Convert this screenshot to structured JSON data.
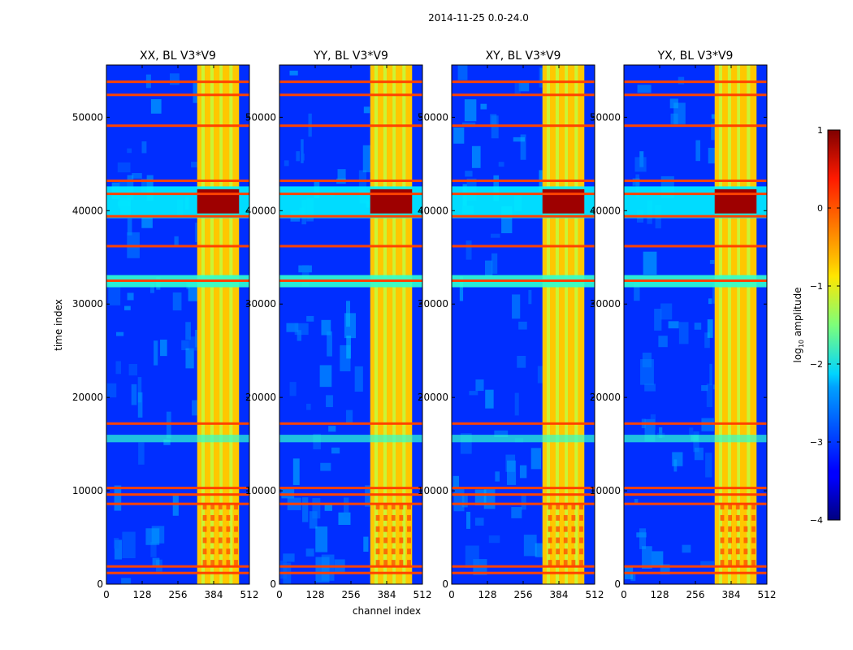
{
  "figure": {
    "suptitle": "2014-11-25 0.0-24.0",
    "xlabel": "channel index",
    "ylabel": "time index"
  },
  "chart_data": [
    {
      "type": "heatmap",
      "title": "XX, BL V3*V9",
      "xlim": [
        0,
        512
      ],
      "ylim": [
        0,
        55600
      ],
      "xticks": [
        0,
        128,
        256,
        384,
        512
      ],
      "yticks": [
        0,
        10000,
        20000,
        30000,
        40000,
        50000
      ],
      "z_units": "log10 amplitude"
    },
    {
      "type": "heatmap",
      "title": "YY, BL V3*V9",
      "xlim": [
        0,
        512
      ],
      "ylim": [
        0,
        55600
      ],
      "xticks": [
        0,
        128,
        256,
        384,
        512
      ],
      "yticks": [
        0,
        10000,
        20000,
        30000,
        40000,
        50000
      ],
      "z_units": "log10 amplitude"
    },
    {
      "type": "heatmap",
      "title": "XY, BL V3*V9",
      "xlim": [
        0,
        512
      ],
      "ylim": [
        0,
        55600
      ],
      "xticks": [
        0,
        128,
        256,
        384,
        512
      ],
      "yticks": [
        0,
        10000,
        20000,
        30000,
        40000,
        50000
      ],
      "z_units": "log10 amplitude"
    },
    {
      "type": "heatmap",
      "title": "YX, BL V3*V9",
      "xlim": [
        0,
        512
      ],
      "ylim": [
        0,
        55600
      ],
      "xticks": [
        0,
        128,
        256,
        384,
        512
      ],
      "yticks": [
        0,
        10000,
        20000,
        30000,
        40000,
        50000
      ],
      "z_units": "log10 amplitude"
    }
  ],
  "colorbar": {
    "label_prefix": "log",
    "label_sub": "10",
    "label_suffix": " amplitude",
    "range": [
      -4,
      1
    ],
    "ticks": [
      1,
      0,
      -1,
      -2,
      -3,
      -4
    ],
    "tick_labels": [
      "1",
      "0",
      "−1",
      "−2",
      "−3",
      "−4"
    ]
  },
  "features": {
    "rfi_channel_band": [
      325,
      475
    ],
    "bright_time_band": [
      39200,
      42600
    ],
    "flagged_rows": [
      1200,
      1900,
      8600,
      9600,
      10300,
      17200,
      32500,
      36200,
      39400,
      41800,
      43200,
      49100,
      52400,
      53800
    ]
  }
}
